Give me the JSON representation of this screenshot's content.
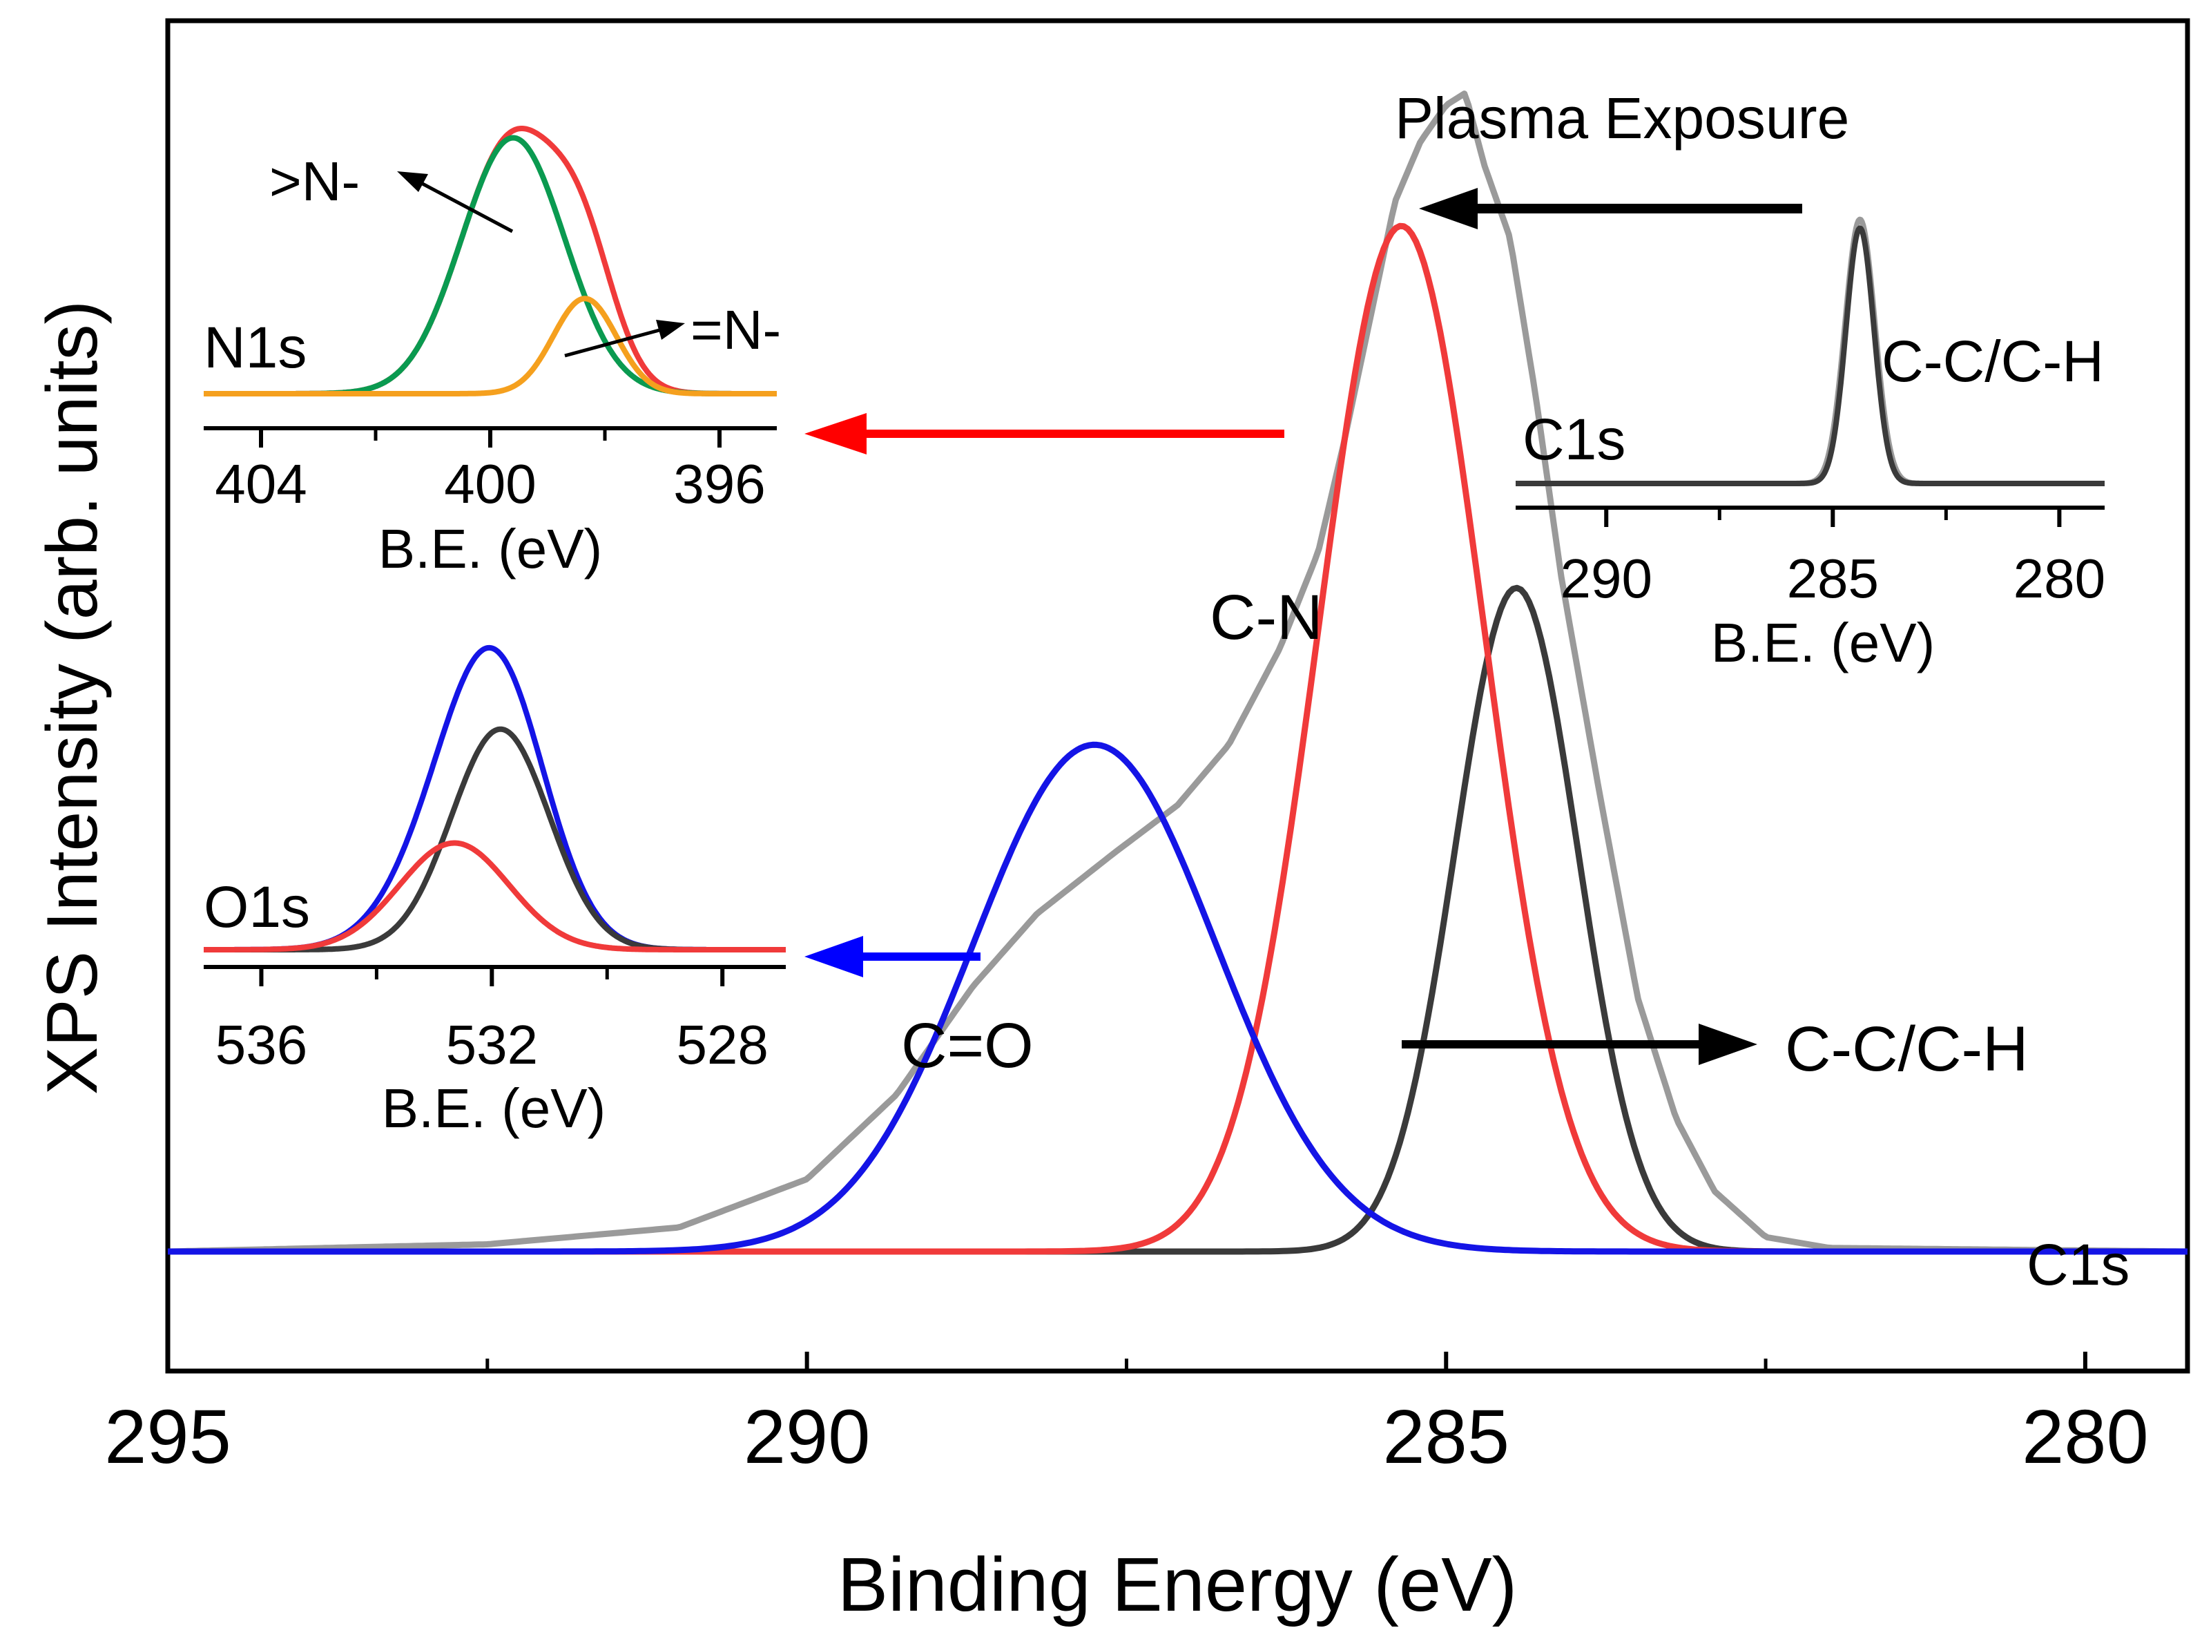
{
  "colors": {
    "raw": "#9a9a9a",
    "cc": "#3a3a3a",
    "cn": "#f03a3a",
    "co": "#1414e6",
    "green": "#0a9a50",
    "orange": "#f5a01e",
    "arrow_red": "#ff0000",
    "arrow_blue": "#0000ff",
    "arrow_black": "#000000"
  },
  "chart_data": [
    {
      "id": "main",
      "type": "line",
      "title": "",
      "xlabel": "Binding Energy (eV)",
      "ylabel": "XPS Intensity (arb. units)",
      "xlim": [
        295,
        279.2
      ],
      "ylim": [
        -0.08,
        1.02
      ],
      "x_reversed": true,
      "xticks": [
        295,
        290,
        285,
        280
      ],
      "xtick_labels": [
        "295",
        "290",
        "285",
        "280"
      ],
      "minor_xticks": [
        292.5,
        287.5,
        282.5
      ],
      "series": [
        {
          "name": "Raw C1s",
          "color_key": "raw",
          "points": [
            [
              295,
              0
            ],
            [
              292.5,
              0.006
            ],
            [
              291,
              0.02
            ],
            [
              290,
              0.06
            ],
            [
              289.3,
              0.13
            ],
            [
              288.7,
              0.22
            ],
            [
              288.2,
              0.28
            ],
            [
              287.6,
              0.33
            ],
            [
              287.1,
              0.37
            ],
            [
              286.7,
              0.42
            ],
            [
              286.3,
              0.5
            ],
            [
              286.0,
              0.58
            ],
            [
              285.8,
              0.67
            ],
            [
              285.6,
              0.77
            ],
            [
              285.4,
              0.87
            ],
            [
              285.2,
              0.92
            ],
            [
              285.0,
              0.95
            ],
            [
              284.85,
              0.96
            ],
            [
              284.7,
              0.9
            ],
            [
              284.5,
              0.84
            ],
            [
              284.3,
              0.71
            ],
            [
              284.1,
              0.56
            ],
            [
              283.8,
              0.38
            ],
            [
              283.5,
              0.21
            ],
            [
              283.2,
              0.11
            ],
            [
              282.9,
              0.05
            ],
            [
              282.5,
              0.012
            ],
            [
              282.0,
              0.003
            ],
            [
              279.2,
              0
            ]
          ]
        },
        {
          "name": "C-C/C-H fit",
          "color_key": "cc",
          "peaks": [
            {
              "center": 284.45,
              "amplitude": 0.55,
              "sigma": 0.48
            }
          ]
        },
        {
          "name": "C-N fit",
          "color_key": "cn",
          "peaks": [
            {
              "center": 285.35,
              "amplitude": 0.85,
              "sigma": 0.65
            }
          ]
        },
        {
          "name": "C=O fit",
          "color_key": "co",
          "peaks": [
            {
              "center": 287.75,
              "amplitude": 0.42,
              "sigma": 0.95
            }
          ]
        }
      ],
      "annotations": {
        "plasma_exposure": "Plasma Exposure",
        "c1s": "C1s",
        "cn": "C-N",
        "co": "C=O",
        "cc": "C-C/C-H"
      }
    },
    {
      "id": "n1s_inset",
      "type": "line",
      "label": "N1s",
      "xlabel": "B.E. (eV)",
      "xlim": [
        405,
        395
      ],
      "ylim": [
        0,
        1
      ],
      "xticks": [
        404,
        400,
        396
      ],
      "xtick_labels": [
        "404",
        "400",
        "396"
      ],
      "minor_xticks": [
        402,
        398
      ],
      "series": [
        {
          "name": "N1s envelope",
          "color_key": "cn",
          "peaks": [
            {
              "center": 399.6,
              "amplitude": 0.78,
              "sigma": 0.9
            },
            {
              "center": 398.35,
              "amplitude": 0.29,
              "sigma": 0.55
            }
          ]
        },
        {
          "name": ">N- component",
          "color_key": "green",
          "peaks": [
            {
              "center": 399.6,
              "amplitude": 0.78,
              "sigma": 0.9
            }
          ]
        },
        {
          "name": "=N- component",
          "color_key": "orange",
          "peaks": [
            {
              "center": 398.35,
              "amplitude": 0.29,
              "sigma": 0.55
            }
          ]
        }
      ],
      "annotations": {
        "tertiary_n": ">N-",
        "imine_n": "=N-"
      }
    },
    {
      "id": "o1s_inset",
      "type": "line",
      "label": "O1s",
      "xlabel": "B.E. (eV)",
      "xlim": [
        537,
        526.9
      ],
      "ylim": [
        0,
        1
      ],
      "xticks": [
        536,
        532,
        528
      ],
      "xtick_labels": [
        "536",
        "532",
        "528"
      ],
      "minor_xticks": [
        534,
        530
      ],
      "series": [
        {
          "name": "O1s envelope",
          "color_key": "co",
          "peaks": [
            {
              "center": 531.85,
              "amplitude": 0.62,
              "sigma": 0.85
            },
            {
              "center": 532.65,
              "amplitude": 0.3,
              "sigma": 0.95
            }
          ]
        },
        {
          "name": "O1s component 1",
          "color_key": "cc",
          "peaks": [
            {
              "center": 531.85,
              "amplitude": 0.62,
              "sigma": 0.85
            }
          ]
        },
        {
          "name": "O1s component 2",
          "color_key": "cn",
          "peaks": [
            {
              "center": 532.65,
              "amplitude": 0.3,
              "sigma": 0.95
            }
          ]
        }
      ]
    },
    {
      "id": "c1s_inset",
      "type": "line",
      "label": "C1s",
      "xlabel": "B.E. (eV)",
      "xlim": [
        292,
        279
      ],
      "ylim": [
        0,
        1
      ],
      "xticks": [
        290,
        285,
        280
      ],
      "xtick_labels": [
        "290",
        "285",
        "280"
      ],
      "minor_xticks": [
        287.5,
        282.5
      ],
      "series": [
        {
          "name": "C1s raw (before plasma)",
          "color_key": "raw",
          "peaks": [
            {
              "center": 284.4,
              "amplitude": 0.9,
              "sigma": 0.33
            }
          ]
        },
        {
          "name": "C-C/C-H fit (before plasma)",
          "color_key": "cc",
          "peaks": [
            {
              "center": 284.4,
              "amplitude": 0.87,
              "sigma": 0.31
            }
          ]
        }
      ],
      "annotations": {
        "cc": "C-C/C-H"
      }
    }
  ]
}
